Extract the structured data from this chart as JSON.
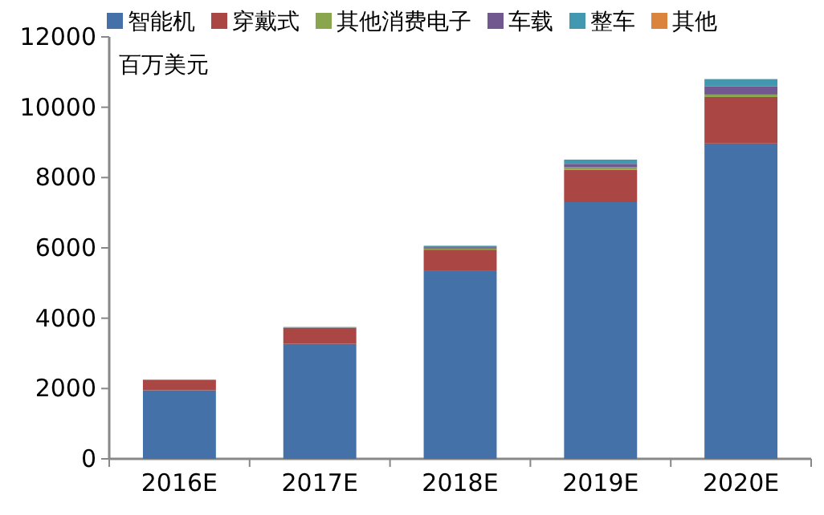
{
  "chart_data": {
    "type": "bar",
    "stacked": true,
    "legend": "top",
    "categories": [
      "2016E",
      "2017E",
      "2018E",
      "2019E",
      "2020E"
    ],
    "series": [
      {
        "name": "智能机",
        "color": "#4472a8",
        "values": [
          1950,
          3270,
          5360,
          7300,
          8970
        ]
      },
      {
        "name": "穿戴式",
        "color": "#aa4643",
        "values": [
          300,
          450,
          590,
          920,
          1320
        ]
      },
      {
        "name": "其他消费电子",
        "color": "#89a54e",
        "values": [
          0,
          10,
          30,
          70,
          70
        ]
      },
      {
        "name": "车载",
        "color": "#71588f",
        "values": [
          0,
          10,
          40,
          100,
          230
        ]
      },
      {
        "name": "整车",
        "color": "#4198af",
        "values": [
          0,
          10,
          40,
          120,
          210
        ]
      },
      {
        "name": "其他",
        "color": "#db843d",
        "values": [
          0,
          0,
          0,
          0,
          0
        ]
      }
    ],
    "ylim": [
      0,
      12000
    ],
    "yticks": [
      0,
      2000,
      4000,
      6000,
      8000,
      10000,
      12000
    ],
    "annotations": [
      "百万美元"
    ]
  }
}
